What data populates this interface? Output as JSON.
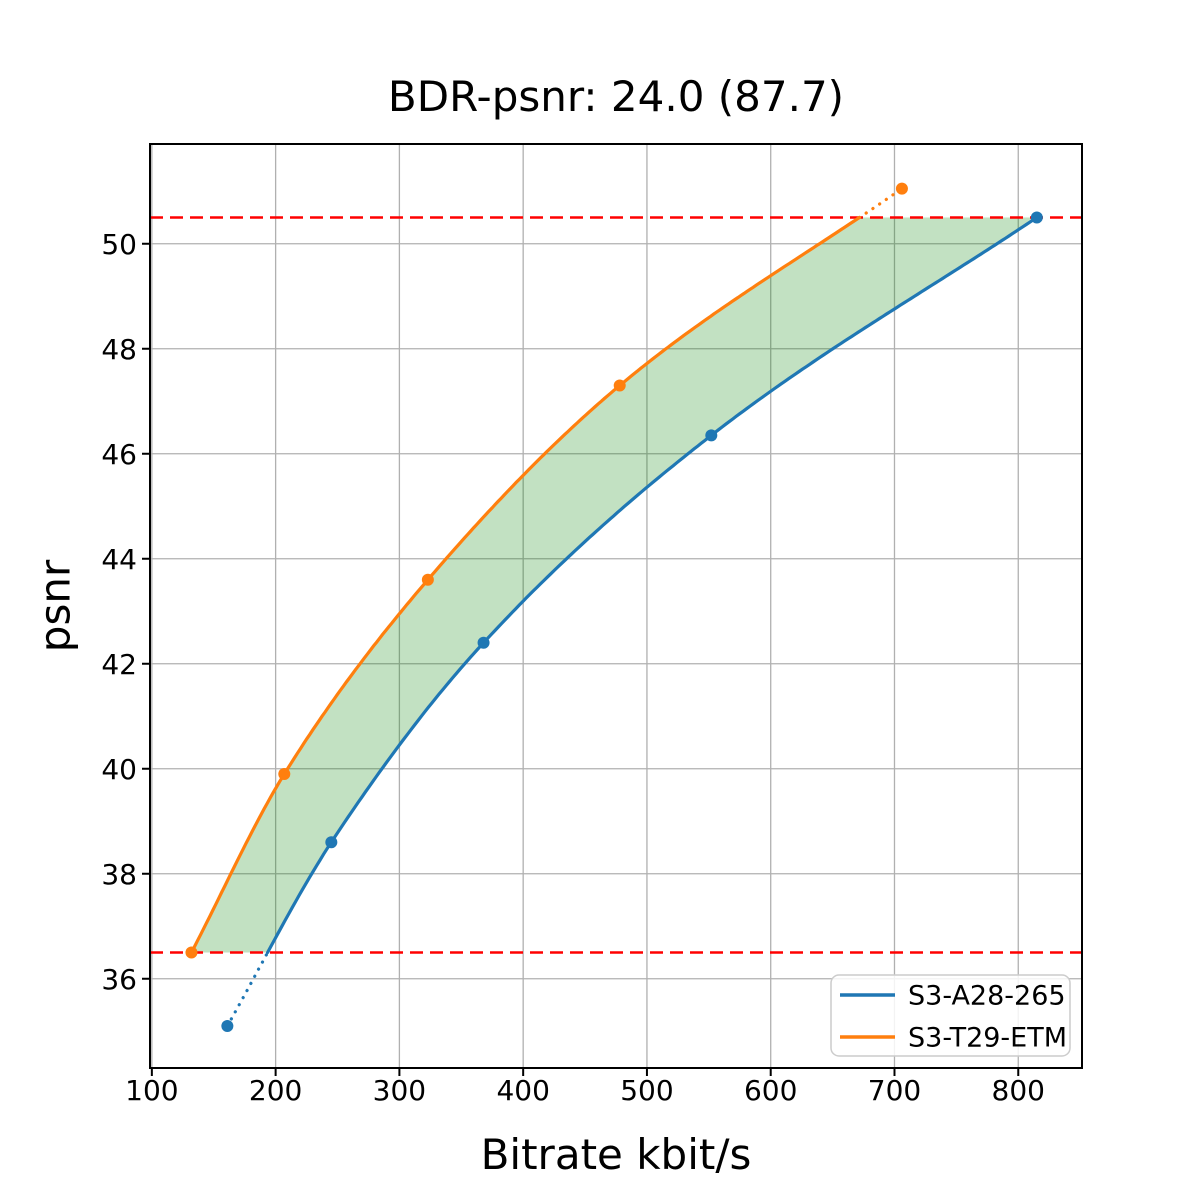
{
  "chart_data": {
    "type": "line",
    "title": "BDR-psnr: 24.0 (87.7)",
    "xlabel": "Bitrate kbit/s",
    "ylabel": "psnr",
    "xlim": [
      98.5,
      851.5
    ],
    "ylim": [
      34.3,
      51.9
    ],
    "xticks": [
      100,
      200,
      300,
      400,
      500,
      600,
      700,
      800
    ],
    "yticks": [
      36,
      38,
      40,
      42,
      44,
      46,
      48,
      50
    ],
    "grid": true,
    "interpolation": "monotone-cubic",
    "legend": {
      "position": "lower right"
    },
    "series": [
      {
        "name": "S3-A28-265",
        "color": "#1f77b4",
        "x": [
          161,
          245,
          368,
          552,
          815
        ],
        "y": [
          35.1,
          38.6,
          42.4,
          46.35,
          50.5
        ]
      },
      {
        "name": "S3-T29-ETM",
        "color": "#ff7f0e",
        "x": [
          132,
          207,
          323,
          478,
          706
        ],
        "y": [
          36.5,
          39.9,
          43.6,
          47.3,
          51.05
        ]
      }
    ],
    "hlines": {
      "values": [
        36.5,
        50.5
      ],
      "color": "#ff0000",
      "style": "dashed"
    },
    "shaded_band": {
      "ymin": 36.5,
      "ymax": 50.5,
      "lower_series": 0,
      "upper_series": 1,
      "color": "#008000",
      "opacity": 0.24
    }
  }
}
